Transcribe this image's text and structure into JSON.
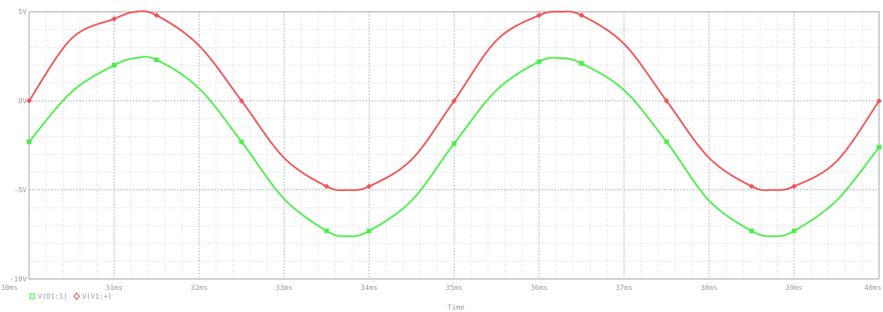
{
  "chart_data": {
    "type": "line",
    "xlabel": "Time",
    "xlim": [
      30,
      40
    ],
    "ylim": [
      -10,
      5
    ],
    "x_ticks": [
      "30ms",
      "31ms",
      "32ms",
      "33ms",
      "34ms",
      "35ms",
      "36ms",
      "37ms",
      "38ms",
      "39ms",
      "40ms"
    ],
    "y_ticks": [
      {
        "value": 5,
        "label": "5V"
      },
      {
        "value": 0,
        "label": "0V"
      },
      {
        "value": -5,
        "label": "-5V"
      },
      {
        "value": -10,
        "label": "-10V"
      }
    ],
    "grid": true,
    "legend_position": "bottom-left",
    "series": [
      {
        "name": "V(D1:1)",
        "color": "#4dee4d",
        "marker": "square",
        "x": [
          30.0,
          30.5,
          31.0,
          31.25,
          31.5,
          32.0,
          32.5,
          33.0,
          33.5,
          33.75,
          34.0,
          34.5,
          35.0,
          35.5,
          36.0,
          36.25,
          36.5,
          37.0,
          37.5,
          38.0,
          38.5,
          38.75,
          39.0,
          39.5,
          40.0
        ],
        "y": [
          -2.3,
          0.5,
          2.0,
          2.4,
          2.3,
          0.7,
          -2.3,
          -5.5,
          -7.3,
          -7.6,
          -7.3,
          -5.6,
          -2.4,
          0.6,
          2.2,
          2.4,
          2.1,
          0.6,
          -2.3,
          -5.6,
          -7.3,
          -7.6,
          -7.3,
          -5.6,
          -2.6
        ]
      },
      {
        "name": "V(V1:+)",
        "color": "#f05555",
        "marker": "diamond",
        "x": [
          30.0,
          30.5,
          31.0,
          31.25,
          31.5,
          32.0,
          32.5,
          33.0,
          33.5,
          33.75,
          34.0,
          34.5,
          35.0,
          35.5,
          36.0,
          36.25,
          36.5,
          37.0,
          37.5,
          38.0,
          38.5,
          38.75,
          39.0,
          39.5,
          40.0
        ],
        "y": [
          0.0,
          3.5,
          4.6,
          5.0,
          4.8,
          3.1,
          0.0,
          -3.2,
          -4.8,
          -5.0,
          -4.8,
          -3.3,
          0.0,
          3.4,
          4.8,
          5.0,
          4.8,
          3.2,
          0.0,
          -3.2,
          -4.8,
          -5.0,
          -4.8,
          -3.4,
          0.0
        ]
      }
    ]
  }
}
